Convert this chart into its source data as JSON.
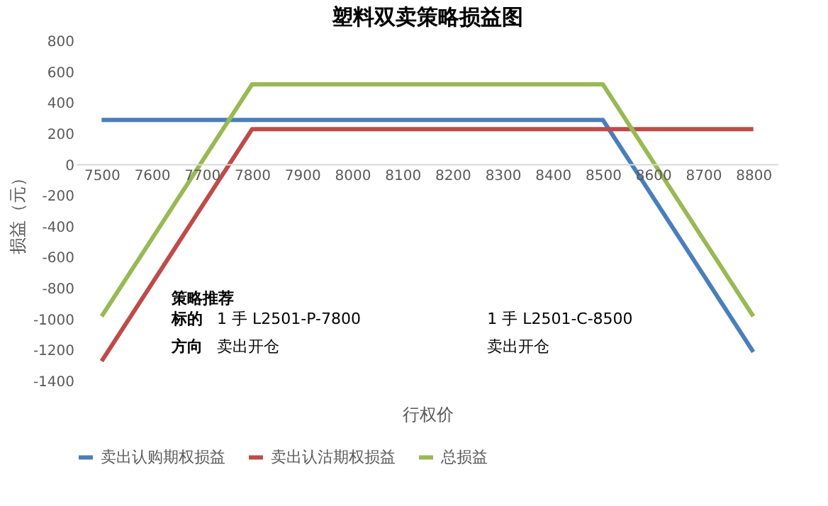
{
  "chart_data": {
    "type": "line",
    "title": "塑料双卖策略损益图",
    "xlabel": "行权价",
    "ylabel": "损益（元）",
    "categories": [
      "7500",
      "7600",
      "7700",
      "7800",
      "7900",
      "8000",
      "8100",
      "8200",
      "8300",
      "8400",
      "8500",
      "8600",
      "8700",
      "8800"
    ],
    "series": [
      {
        "name": "卖出认购期权损益",
        "color": "#4a7ebb",
        "values": [
          290,
          290,
          290,
          290,
          290,
          290,
          290,
          290,
          290,
          290,
          290,
          -210,
          -710,
          -1210
        ]
      },
      {
        "name": "卖出认沽期权损益",
        "color": "#be4b48",
        "values": [
          -1270,
          -770,
          -270,
          230,
          230,
          230,
          230,
          230,
          230,
          230,
          230,
          230,
          230,
          230
        ]
      },
      {
        "name": "总损益",
        "color": "#98b954",
        "values": [
          -980,
          -480,
          20,
          520,
          520,
          520,
          520,
          520,
          520,
          520,
          520,
          20,
          -480,
          -980
        ]
      }
    ],
    "ylim": [
      -1400,
      800
    ],
    "yticks": [
      -1400,
      -1200,
      -1000,
      -800,
      -600,
      -400,
      -200,
      0,
      200,
      400,
      600,
      800
    ],
    "grid": false,
    "legend": "bottom",
    "annotations": [
      "策略推荐",
      "标的",
      "1 手 L2501-P-7800",
      "1 手 L2501-C-8500",
      "方向",
      "卖出开仓",
      "卖出开仓"
    ]
  }
}
